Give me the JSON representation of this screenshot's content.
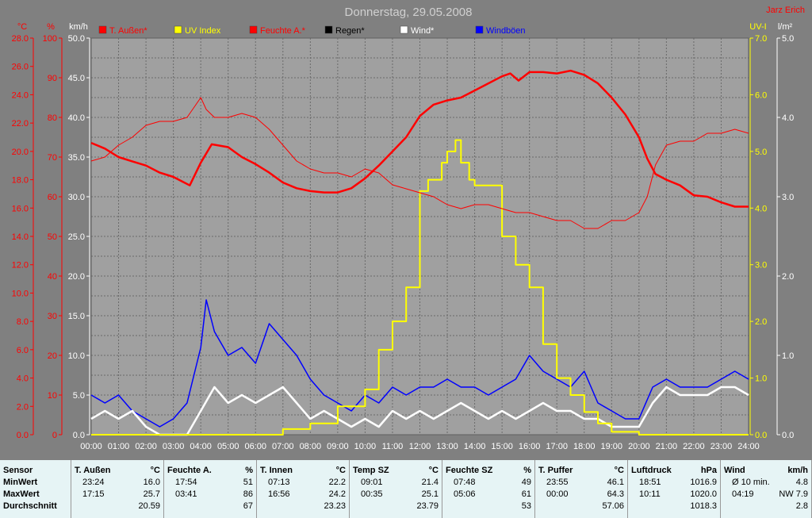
{
  "title": "Donnerstag, 29.05.2008",
  "author": "Jarz Erich",
  "legend": [
    {
      "label": "T. Außen*",
      "color": "#ff0000"
    },
    {
      "label": "UV Index",
      "color": "#ffff00"
    },
    {
      "label": "Feuchte A.*",
      "color": "#ff0000"
    },
    {
      "label": "Regen*",
      "color": "#000000"
    },
    {
      "label": "Wind*",
      "color": "#ffffff"
    },
    {
      "label": "Windböen",
      "color": "#0000ff"
    }
  ],
  "axes": {
    "temp_unit": "°C",
    "hum_unit": "%",
    "wind_unit": "km/h",
    "uv_unit": "UV-I",
    "rain_unit": "l/m²",
    "temp_ticks": [
      "0.0",
      "2.0",
      "4.0",
      "6.0",
      "8.0",
      "10.0",
      "12.0",
      "14.0",
      "16.0",
      "18.0",
      "20.0",
      "22.0",
      "24.0",
      "26.0",
      "28.0"
    ],
    "hum_ticks": [
      "0",
      "10",
      "20",
      "30",
      "40",
      "50",
      "60",
      "70",
      "80",
      "90",
      "100"
    ],
    "wind_ticks": [
      "0.0",
      "5.0",
      "10.0",
      "15.0",
      "20.0",
      "25.0",
      "30.0",
      "35.0",
      "40.0",
      "45.0",
      "50.0"
    ],
    "uv_ticks": [
      "0.0",
      "1.0",
      "2.0",
      "3.0",
      "4.0",
      "5.0",
      "6.0",
      "7.0"
    ],
    "rain_ticks": [
      "0.0",
      "1.0",
      "2.0",
      "3.0",
      "4.0",
      "5.0"
    ],
    "time_ticks": [
      "00:00",
      "01:00",
      "02:00",
      "03:00",
      "04:00",
      "05:00",
      "06:00",
      "07:00",
      "08:00",
      "09:00",
      "10:00",
      "11:00",
      "12:00",
      "13:00",
      "14:00",
      "15:00",
      "16:00",
      "17:00",
      "18:00",
      "19:00",
      "20:00",
      "21:00",
      "22:00",
      "23:00",
      "24:00"
    ]
  },
  "chart_data": {
    "type": "line",
    "xlim": [
      0,
      24
    ],
    "ylim_temp": [
      0,
      28
    ],
    "ylim_hum": [
      0,
      100
    ],
    "ylim_wind": [
      0,
      50
    ],
    "ylim_uv": [
      0,
      7
    ],
    "ylim_rain": [
      0,
      5
    ],
    "grid": true,
    "series": [
      {
        "name": "T. Außen*",
        "axis": "temp",
        "color": "#ff0000",
        "x": [
          0,
          0.5,
          1,
          1.5,
          2,
          2.5,
          3,
          3.3,
          3.6,
          4,
          4.4,
          5,
          5.5,
          6,
          6.5,
          7,
          7.5,
          8,
          8.5,
          9,
          9.5,
          10,
          10.5,
          11,
          11.5,
          12,
          12.5,
          13,
          13.5,
          14,
          14.5,
          15,
          15.3,
          15.6,
          16,
          16.5,
          17,
          17.5,
          18,
          18.5,
          19,
          19.5,
          20,
          20.3,
          20.6,
          21,
          21.5,
          22,
          22.5,
          23,
          23.5,
          24
        ],
        "y": [
          20.6,
          20.2,
          19.6,
          19.3,
          19.0,
          18.5,
          18.2,
          17.9,
          17.6,
          19.2,
          20.5,
          20.3,
          19.6,
          19.1,
          18.5,
          17.8,
          17.4,
          17.2,
          17.1,
          17.1,
          17.4,
          18.1,
          19.0,
          20.0,
          21.0,
          22.5,
          23.3,
          23.6,
          23.8,
          24.3,
          24.8,
          25.3,
          25.5,
          25.0,
          25.6,
          25.6,
          25.5,
          25.7,
          25.4,
          24.8,
          23.8,
          22.6,
          21.0,
          19.5,
          18.4,
          18.0,
          17.6,
          16.9,
          16.8,
          16.4,
          16.1,
          16.1
        ]
      },
      {
        "name": "Feuchte A.*",
        "axis": "hum",
        "color": "#ff0000",
        "x": [
          0,
          0.5,
          1,
          1.5,
          2,
          2.5,
          3,
          3.5,
          3.8,
          4,
          4.2,
          4.5,
          5,
          5.5,
          6,
          6.5,
          7,
          7.5,
          8,
          8.5,
          9,
          9.5,
          10,
          10.5,
          11,
          11.5,
          12,
          12.5,
          13,
          13.5,
          14,
          14.5,
          15,
          15.5,
          16,
          16.5,
          17,
          17.5,
          18,
          18.5,
          19,
          19.5,
          20,
          20.3,
          20.6,
          21,
          21.5,
          22,
          22.5,
          23,
          23.5,
          24
        ],
        "y": [
          69,
          70,
          73,
          75,
          78,
          79,
          79,
          80,
          83,
          85,
          82,
          80,
          80,
          81,
          80,
          77,
          73,
          69,
          67,
          66,
          66,
          65,
          67,
          66,
          63,
          62,
          61,
          60,
          58,
          57,
          58,
          58,
          57,
          56,
          56,
          55,
          54,
          54,
          52,
          52,
          54,
          54,
          56,
          60,
          68,
          73,
          74,
          74,
          76,
          76,
          77,
          76
        ]
      },
      {
        "name": "UV Index",
        "axis": "uv",
        "color": "#ffff00",
        "x": [
          0,
          6.2,
          7,
          8,
          9,
          10,
          10.5,
          11,
          11.5,
          12,
          12.3,
          12.8,
          13,
          13.3,
          13.5,
          13.8,
          14,
          14.5,
          15,
          15.5,
          16,
          16.5,
          17,
          17.5,
          18,
          18.5,
          19,
          20,
          24
        ],
        "y": [
          0,
          0,
          0.1,
          0.2,
          0.5,
          0.8,
          1.5,
          2.0,
          2.6,
          4.3,
          4.5,
          4.8,
          5.0,
          5.2,
          4.8,
          4.5,
          4.4,
          4.4,
          3.5,
          3.0,
          2.6,
          1.6,
          1.0,
          0.7,
          0.4,
          0.2,
          0.05,
          0,
          0
        ]
      },
      {
        "name": "Wind*",
        "axis": "wind",
        "color": "#ffffff",
        "x": [
          0,
          0.5,
          1,
          1.5,
          2,
          2.5,
          3,
          3.5,
          4,
          4.5,
          5,
          5.5,
          6,
          6.5,
          7,
          7.5,
          8,
          8.5,
          9,
          9.5,
          10,
          10.5,
          11,
          11.5,
          12,
          12.5,
          13,
          13.5,
          14,
          14.5,
          15,
          15.5,
          16,
          16.5,
          17,
          17.5,
          18,
          18.5,
          19,
          19.5,
          20,
          20.5,
          21,
          21.5,
          22,
          22.5,
          23,
          23.5,
          24
        ],
        "y": [
          2,
          3,
          2,
          3,
          1,
          0,
          0,
          0,
          3,
          6,
          4,
          5,
          4,
          5,
          6,
          4,
          2,
          3,
          2,
          1,
          2,
          1,
          3,
          2,
          3,
          2,
          3,
          4,
          3,
          2,
          3,
          2,
          3,
          4,
          3,
          3,
          2,
          2,
          1,
          1,
          1,
          4,
          6,
          5,
          5,
          5,
          6,
          6,
          5
        ]
      },
      {
        "name": "Windböen",
        "axis": "wind",
        "color": "#0000ff",
        "x": [
          0,
          0.5,
          1,
          1.5,
          2,
          2.5,
          3,
          3.5,
          4,
          4.2,
          4.5,
          5,
          5.5,
          6,
          6.5,
          7,
          7.5,
          8,
          8.5,
          9,
          9.5,
          10,
          10.5,
          11,
          11.5,
          12,
          12.5,
          13,
          13.5,
          14,
          14.5,
          15,
          15.5,
          16,
          16.5,
          17,
          17.5,
          18,
          18.5,
          19,
          19.5,
          20,
          20.5,
          21,
          21.5,
          22,
          22.5,
          23,
          23.5,
          24
        ],
        "y": [
          5,
          4,
          5,
          3,
          2,
          1,
          2,
          4,
          11,
          17,
          13,
          10,
          11,
          9,
          14,
          12,
          10,
          7,
          5,
          4,
          3,
          5,
          4,
          6,
          5,
          6,
          6,
          7,
          6,
          6,
          5,
          6,
          7,
          10,
          8,
          7,
          6,
          8,
          4,
          3,
          2,
          2,
          6,
          7,
          6,
          6,
          6,
          7,
          8,
          7
        ]
      }
    ]
  },
  "stats": {
    "columns": [
      {
        "name": "Sensor",
        "unit": "",
        "rows": [
          [
            "MinWert",
            ""
          ],
          [
            "MaxWert",
            ""
          ],
          [
            "Durchschnitt",
            ""
          ]
        ]
      },
      {
        "name": "T. Außen",
        "unit": "°C",
        "rows": [
          [
            "23:24",
            "16.0"
          ],
          [
            "17:15",
            "25.7"
          ],
          [
            "",
            "20.59"
          ]
        ]
      },
      {
        "name": "Feuchte A.",
        "unit": "%",
        "rows": [
          [
            "17:54",
            "51"
          ],
          [
            "03:41",
            "86"
          ],
          [
            "",
            "67"
          ]
        ]
      },
      {
        "name": "T. Innen",
        "unit": "°C",
        "rows": [
          [
            "07:13",
            "22.2"
          ],
          [
            "16:56",
            "24.2"
          ],
          [
            "",
            "23.23"
          ]
        ]
      },
      {
        "name": "Temp SZ",
        "unit": "°C",
        "rows": [
          [
            "09:01",
            "21.4"
          ],
          [
            "00:35",
            "25.1"
          ],
          [
            "",
            "23.79"
          ]
        ]
      },
      {
        "name": "Feuchte SZ",
        "unit": "%",
        "rows": [
          [
            "07:48",
            "49"
          ],
          [
            "05:06",
            "61"
          ],
          [
            "",
            "53"
          ]
        ]
      },
      {
        "name": "T. Puffer",
        "unit": "°C",
        "rows": [
          [
            "23:55",
            "46.1"
          ],
          [
            "00:00",
            "64.3"
          ],
          [
            "",
            "57.06"
          ]
        ]
      },
      {
        "name": "Luftdruck",
        "unit": "hPa",
        "rows": [
          [
            "18:51",
            "1016.9"
          ],
          [
            "10:11",
            "1020.0"
          ],
          [
            "",
            "1018.3"
          ]
        ]
      },
      {
        "name": "Wind",
        "unit": "km/h",
        "rows": [
          [
            "Ø 10 min.",
            "4.8"
          ],
          [
            "04:19",
            "NW 7.9"
          ],
          [
            "",
            "2.8"
          ]
        ]
      }
    ]
  }
}
